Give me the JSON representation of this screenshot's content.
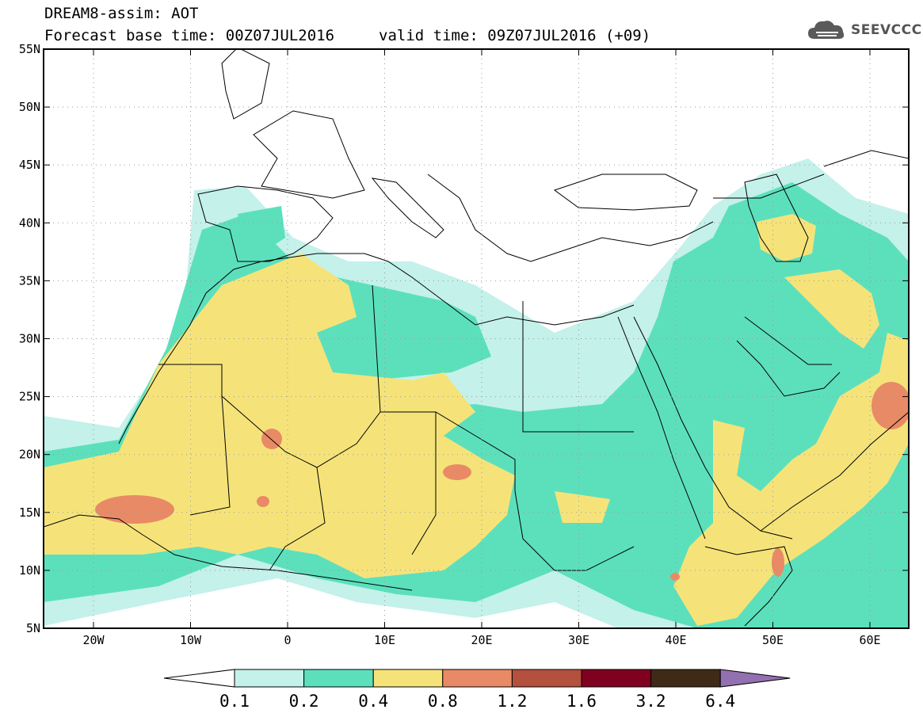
{
  "header": {
    "title_line1": "DREAM8-assim: AOT",
    "title_line2": "Forecast base time: 00Z07JUL2016",
    "valid_time": "valid time: 09Z07JUL2016 (+09)",
    "logo_text": "SEEVCCC",
    "logo_icon": "cloud-icon"
  },
  "map": {
    "y_ticks": [
      "55N",
      "50N",
      "45N",
      "40N",
      "35N",
      "30N",
      "25N",
      "20N",
      "15N",
      "10N",
      "5N"
    ],
    "x_ticks": [
      "20W",
      "10W",
      "0",
      "10E",
      "20E",
      "30E",
      "40E",
      "50E",
      "60E"
    ]
  },
  "colorbar": {
    "labels": [
      "0.1",
      "0.2",
      "0.4",
      "0.8",
      "1.2",
      "1.6",
      "3.2",
      "6.4"
    ],
    "colors": [
      "#ffffff",
      "#c4f1ea",
      "#5ce0bc",
      "#f5e37a",
      "#e98a66",
      "#b3503e",
      "#800020",
      "#3f2a17",
      "#9370b0"
    ]
  },
  "colors": {
    "aot_0_1": "#c4f1ea",
    "aot_0_2": "#5ce0bc",
    "aot_0_4": "#f5e37a",
    "aot_0_8": "#e98a66",
    "coast": "#000000"
  }
}
